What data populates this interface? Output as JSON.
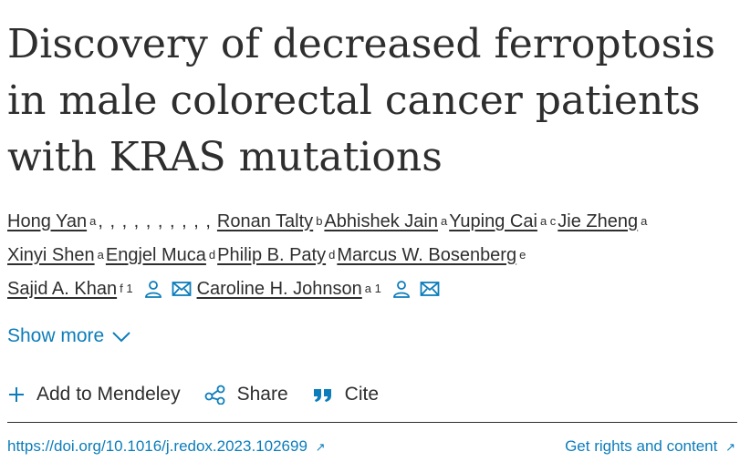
{
  "article": {
    "title": "Discovery of decreased ferroptosis in male colorectal cancer patients with KRAS mutations"
  },
  "authors": [
    {
      "name": "Hong Yan",
      "aff": "a"
    },
    {
      "name": "Ronan Talty",
      "aff": "b"
    },
    {
      "name": "Abhishek Jain",
      "aff": "a"
    },
    {
      "name": "Yuping Cai",
      "aff": "a c"
    },
    {
      "name": "Jie Zheng",
      "aff": "a"
    },
    {
      "name": "Xinyi Shen",
      "aff": "a"
    },
    {
      "name": "Engjel Muca",
      "aff": "d"
    },
    {
      "name": "Philip B. Paty",
      "aff": "d"
    },
    {
      "name": "Marcus W. Bosenberg",
      "aff": "e"
    },
    {
      "name": "Sajid A. Khan",
      "aff": "f 1"
    },
    {
      "name": "Caroline H. Johnson",
      "aff": "a 1"
    }
  ],
  "author_separators": {
    "after_first": ", , , , , , , , , ,"
  },
  "show_more": {
    "label": "Show more"
  },
  "actions": {
    "mendeley": "Add to Mendeley",
    "share": "Share",
    "cite": "Cite"
  },
  "links": {
    "doi": "https://doi.org/10.1016/j.redox.2023.102699",
    "rights": "Get rights and content",
    "ext_arrow": "↗"
  },
  "colors": {
    "link": "#0c7dbb",
    "text": "#2e2e2e"
  }
}
